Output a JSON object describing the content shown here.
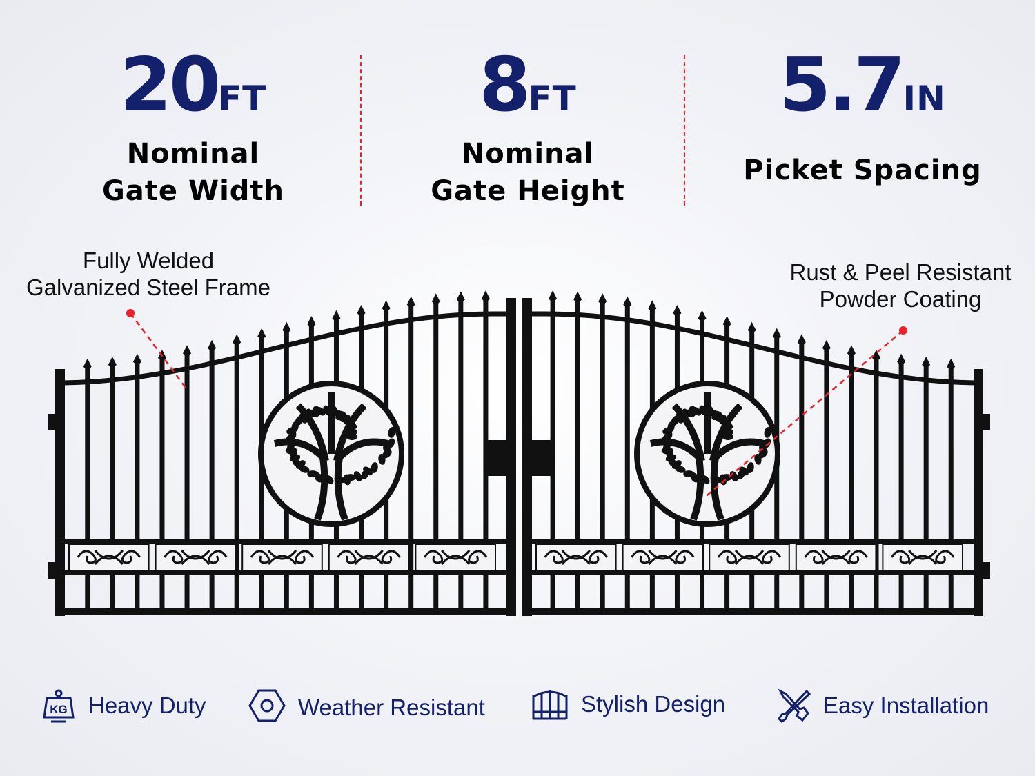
{
  "colors": {
    "navy": "#13206b",
    "accent_red": "#e8232a",
    "gate": "#111111"
  },
  "stats": [
    {
      "value": "20",
      "unit": "FT",
      "label_lines": [
        "Nominal",
        "Gate Width"
      ]
    },
    {
      "value": "8",
      "unit": "FT",
      "label_lines": [
        "Nominal",
        "Gate Height"
      ]
    },
    {
      "value": "5.7",
      "unit": "IN",
      "label_lines": [
        "Picket Spacing"
      ]
    }
  ],
  "callouts": {
    "left": [
      "Fully Welded",
      "Galvanized Steel Frame"
    ],
    "right": [
      "Rust & Peel Resistant",
      "Powder Coating"
    ]
  },
  "features": [
    {
      "icon": "kg-weight-icon",
      "label": "Heavy Duty"
    },
    {
      "icon": "hex-nut-icon",
      "label": "Weather Resistant"
    },
    {
      "icon": "gate-icon",
      "label": "Stylish Design"
    },
    {
      "icon": "tools-icon",
      "label": "Easy Installation"
    }
  ]
}
